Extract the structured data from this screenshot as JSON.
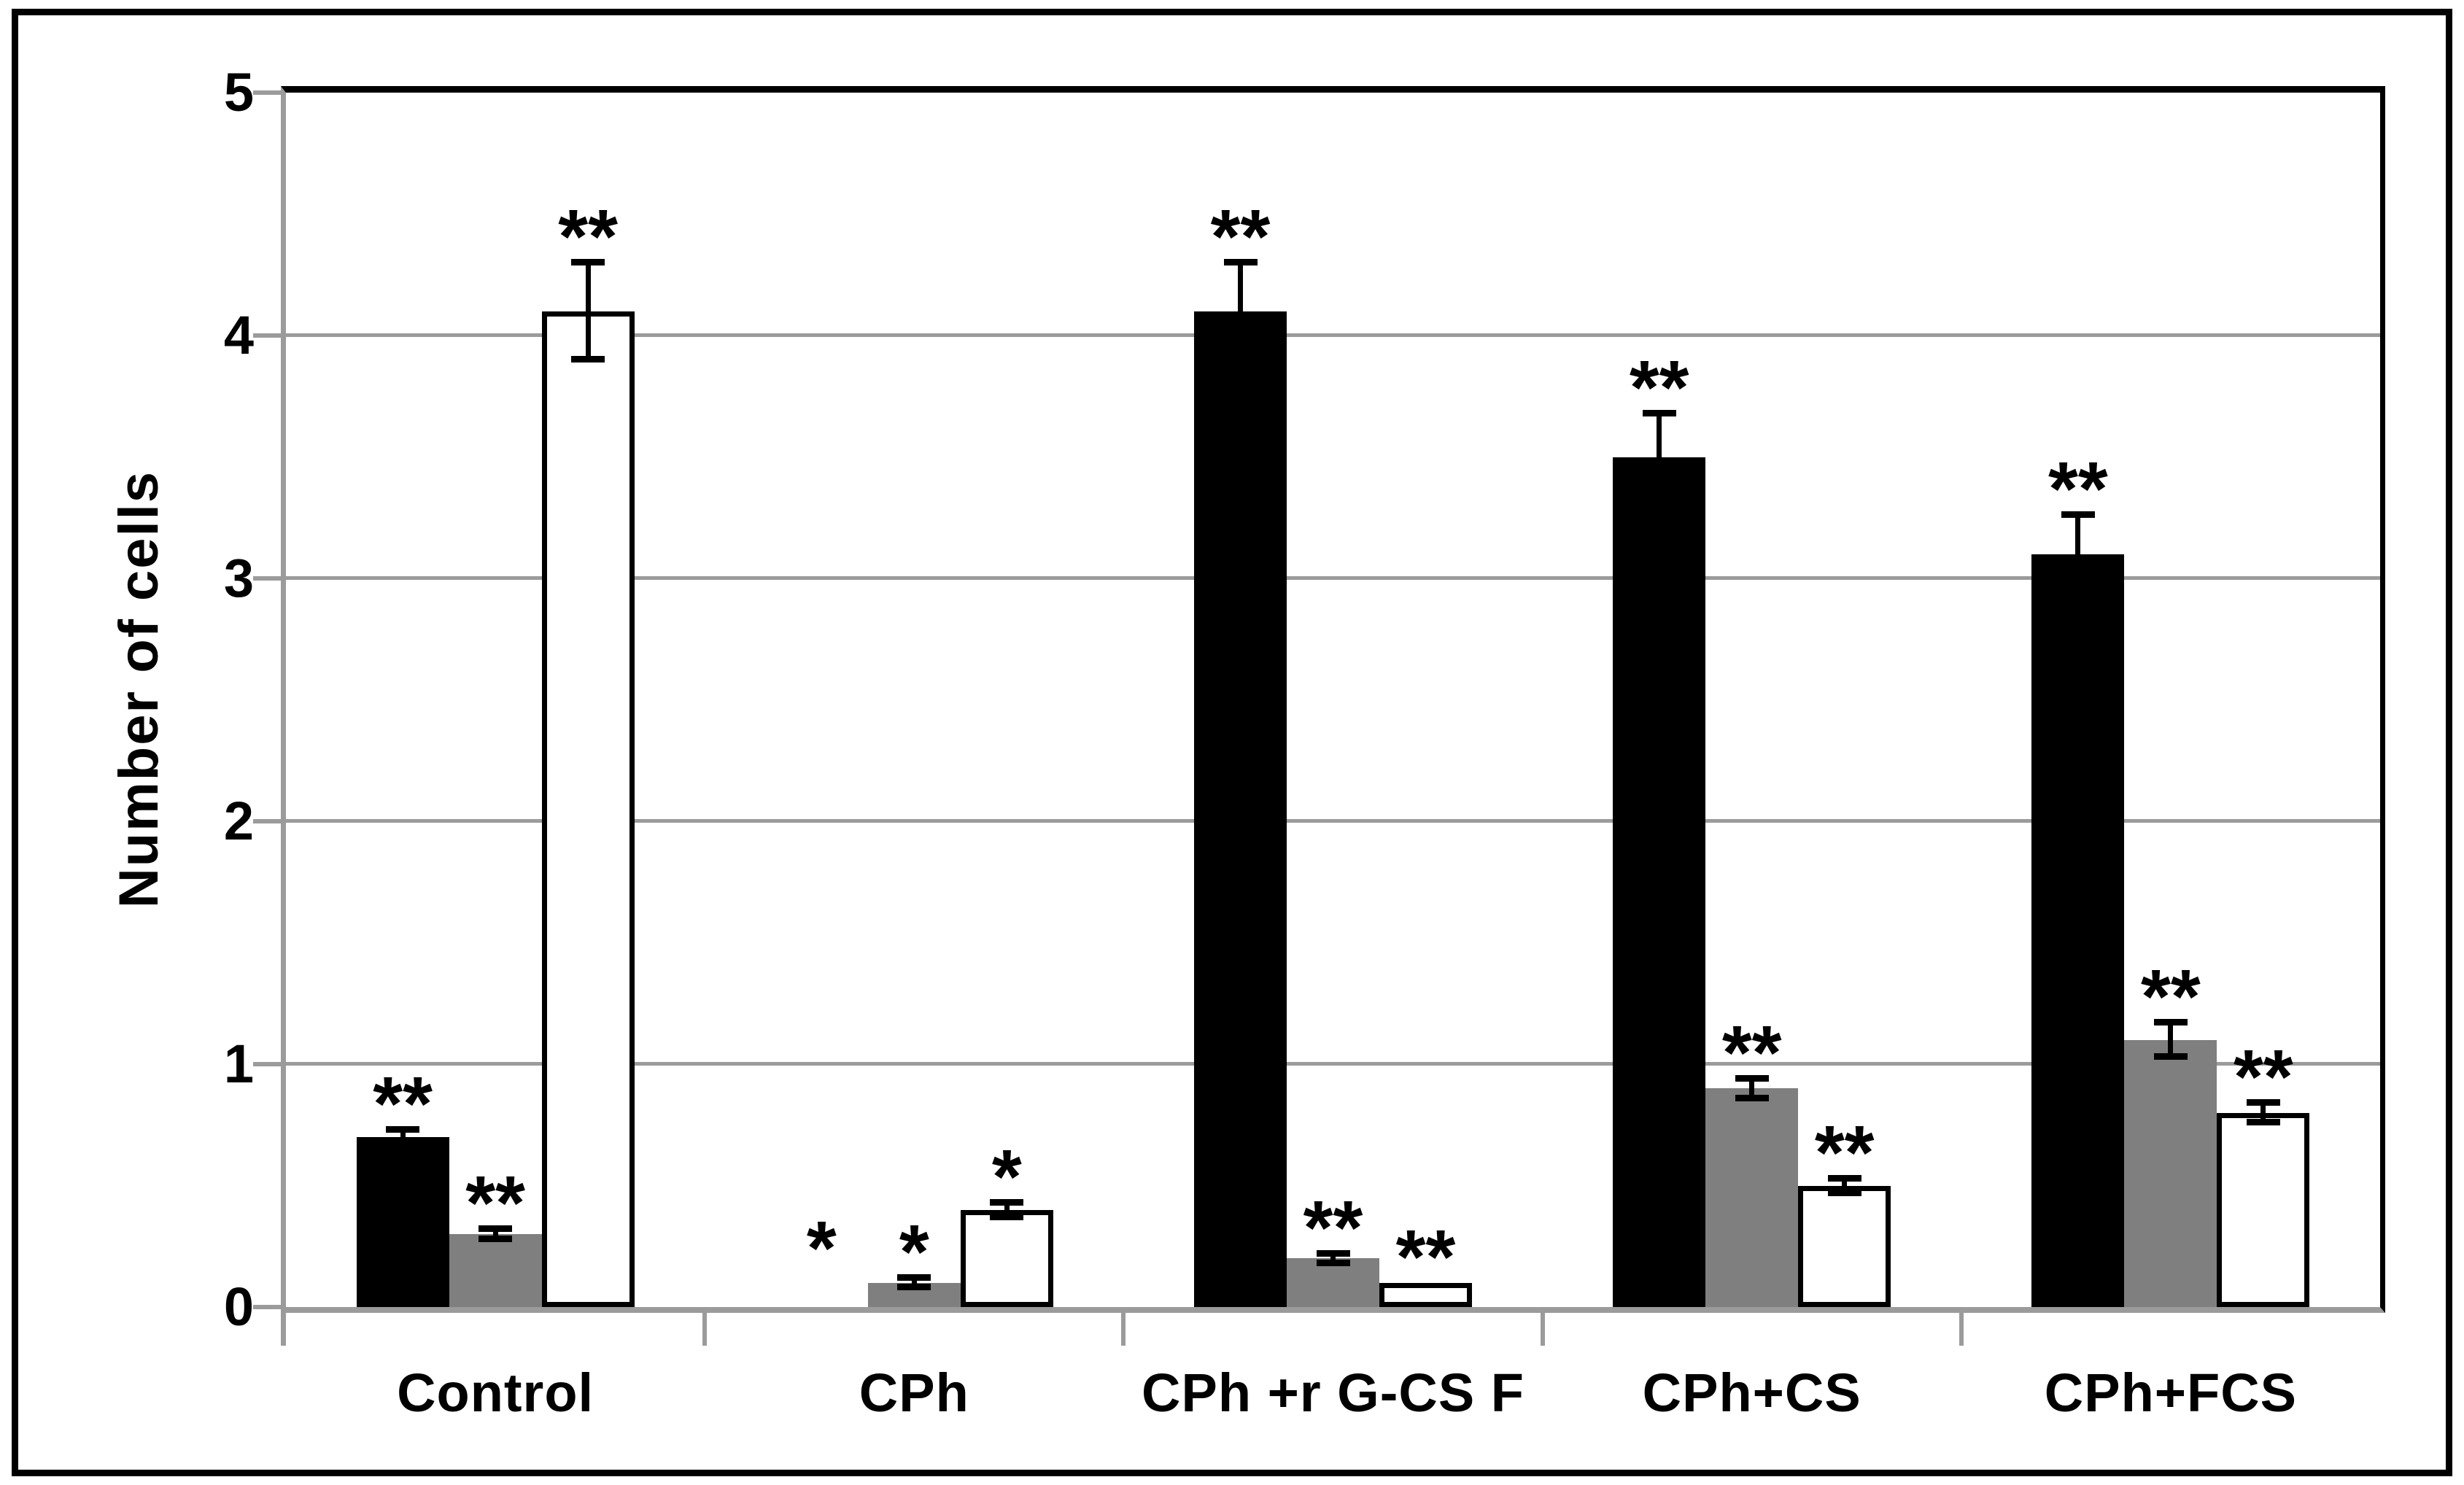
{
  "figure": {
    "ylabel": "Number of cells"
  },
  "colors": {
    "bar_black": "#000000",
    "bar_gray": "#7f7f7f",
    "bar_white": "#ffffff",
    "gridline": "#9b9b9b",
    "axis": "#9b9b9b",
    "plot_top_border": "#000000",
    "plot_right_border": "#000000",
    "figure_border": "#000000"
  },
  "chart_data": {
    "type": "bar",
    "title": "",
    "xlabel": "",
    "ylabel": "Number of cells",
    "ylim": [
      0,
      5
    ],
    "yticks": [
      0,
      1,
      2,
      3,
      4,
      5
    ],
    "grid": true,
    "legend_position": "none",
    "categories": [
      "Control",
      "CPh",
      "CPh +r G-CS F",
      "CPh+CS",
      "CPh+FCS"
    ],
    "series": [
      {
        "name": "black",
        "color": "#000000",
        "values": [
          0.7,
          0,
          4.1,
          3.5,
          3.1
        ],
        "errors": [
          0.03,
          0,
          0.2,
          0.18,
          0.16
        ],
        "significance": [
          "**",
          "*",
          "**",
          "**",
          "**"
        ]
      },
      {
        "name": "gray",
        "color": "#7f7f7f",
        "values": [
          0.3,
          0.1,
          0.2,
          0.9,
          1.1
        ],
        "errors": [
          0.02,
          0.02,
          0.02,
          0.04,
          0.07
        ],
        "significance": [
          "**",
          "*",
          "**",
          "**",
          "**"
        ]
      },
      {
        "name": "white",
        "color": "#ffffff",
        "values": [
          4.1,
          0.4,
          0.1,
          0.5,
          0.8
        ],
        "errors": [
          0.2,
          0.03,
          0,
          0.03,
          0.04
        ],
        "significance": [
          "**",
          "*",
          "**",
          "**",
          "**"
        ]
      }
    ],
    "zero_bar_marker_height": 0.3
  }
}
